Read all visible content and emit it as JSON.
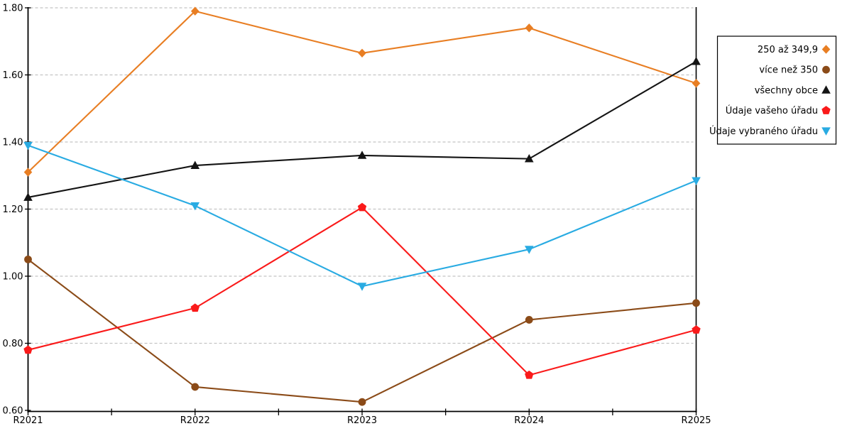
{
  "chart_data": {
    "type": "line",
    "categories": [
      "R2021",
      "R2022",
      "R2023",
      "R2024",
      "R2025"
    ],
    "series": [
      {
        "name": "250 až 349,9",
        "marker": "diamond",
        "color": "#E87E23",
        "values": [
          1.31,
          1.79,
          1.665,
          1.74,
          1.575
        ]
      },
      {
        "name": "více než 350",
        "marker": "circle",
        "color": "#8B4B18",
        "values": [
          1.05,
          0.67,
          0.625,
          0.87,
          0.92
        ]
      },
      {
        "name": "všechny obce",
        "marker": "triangle-up",
        "color": "#141414",
        "values": [
          1.235,
          1.33,
          1.36,
          1.35,
          1.64
        ]
      },
      {
        "name": "Údaje vašeho úřadu",
        "marker": "pentagon",
        "color": "#FA1A1A",
        "values": [
          0.78,
          0.905,
          1.205,
          0.705,
          0.84
        ]
      },
      {
        "name": "Údaje vybraného úřadu",
        "marker": "triangle-down",
        "color": "#29ABE2",
        "values": [
          1.39,
          1.21,
          0.97,
          1.08,
          1.285
        ]
      }
    ],
    "y_axis": {
      "min": 0.6,
      "max": 1.8,
      "step": 0.2,
      "tick_labels": [
        "0.60",
        "0.80",
        "1.00",
        "1.20",
        "1.40",
        "1.60",
        "1.80"
      ]
    },
    "x_axis": {
      "minor_ticks_between_categories": true
    },
    "legend_position": "right",
    "grid": "horizontal-dashed",
    "colors": {
      "axis": "#000000",
      "grid": "#C3C3C3",
      "background": "#FFFFFF",
      "legend_border": "#000000",
      "legend_background": "#FFFFFF"
    },
    "title": "",
    "xlabel": "",
    "ylabel": ""
  }
}
